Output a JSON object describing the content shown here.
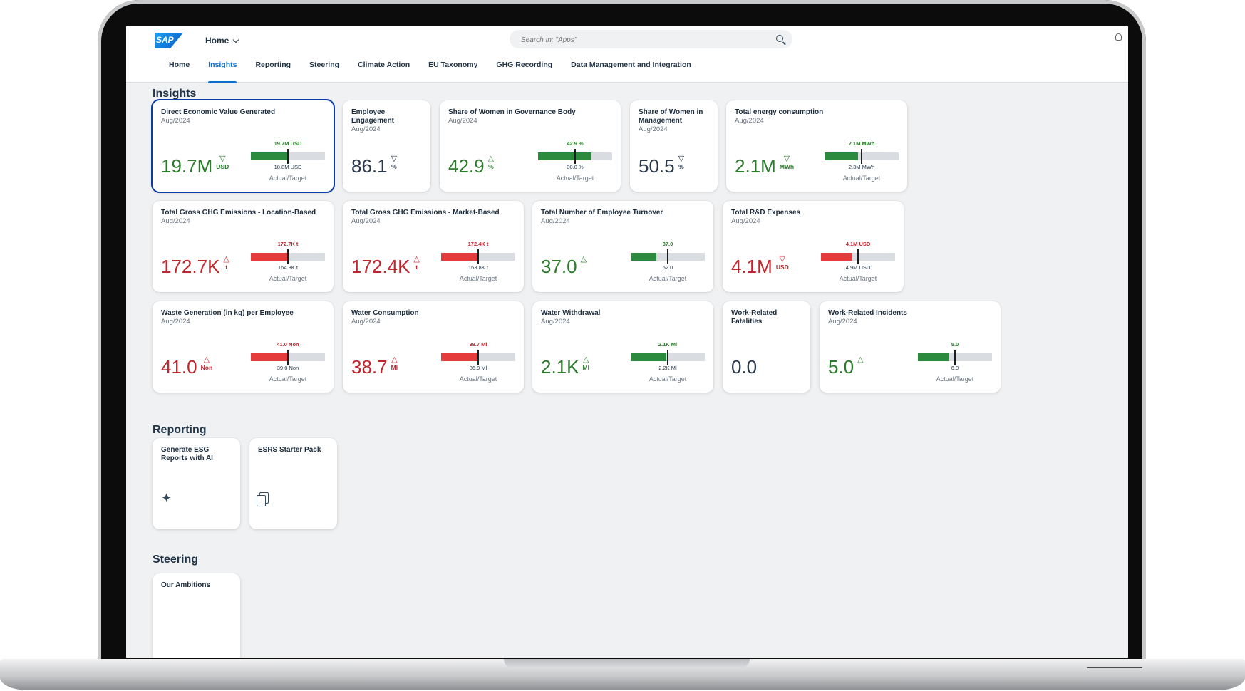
{
  "header": {
    "logo": "SAP",
    "home_label": "Home",
    "search_placeholder": "Search In: \"Apps\""
  },
  "tabs": [
    "Home",
    "Insights",
    "Reporting",
    "Steering",
    "Climate Action",
    "EU Taxonomy",
    "GHG Recording",
    "Data Management and Integration"
  ],
  "active_tab": "Insights",
  "sections": {
    "insights": "Insights",
    "reporting": "Reporting",
    "steering": "Steering"
  },
  "colors": {
    "good": "#2b7c2b",
    "bad": "#c0262d",
    "accent": "#0a6ed1"
  },
  "cards": [
    {
      "title": "Direct Economic Value Generated",
      "date": "Aug/2024",
      "value": "19.7M",
      "unit": "USD",
      "trend": "▽",
      "status": "good",
      "bar_top": "19.7M USD",
      "bar_bottom": "18.8M USD",
      "bar_label": "Actual/Target",
      "actual_fraction": 0.5,
      "target_fraction": 0.5
    },
    {
      "title": "Employee Engagement",
      "date": "Aug/2024",
      "value": "86.1",
      "unit": "%",
      "trend": "▽",
      "status": "neutral"
    },
    {
      "title": "Share of Women in Governance Body",
      "date": "Aug/2024",
      "value": "42.9",
      "unit": "%",
      "trend": "△",
      "status": "good",
      "bar_top": "42.9 %",
      "bar_bottom": "30.0 %",
      "bar_label": "Actual/Target",
      "actual_fraction": 0.72,
      "target_fraction": 0.5
    },
    {
      "title": "Share of Women in Management",
      "date": "Aug/2024",
      "value": "50.5",
      "unit": "%",
      "trend": "▽",
      "status": "neutral"
    },
    {
      "title": "Total energy consumption",
      "date": "Aug/2024",
      "value": "2.1M",
      "unit": "MWh",
      "trend": "▽",
      "status": "good",
      "bar_top": "2.1M MWh",
      "bar_bottom": "2.3M MWh",
      "bar_label": "Actual/Target",
      "actual_fraction": 0.45,
      "target_fraction": 0.5
    },
    {
      "title": "Total Gross GHG Emissions - Location-Based",
      "date": "Aug/2024",
      "value": "172.7K",
      "unit": "t",
      "trend": "△",
      "status": "bad",
      "bar_top": "172.7K t",
      "bar_bottom": "164.3K t",
      "bar_label": "Actual/Target",
      "actual_fraction": 0.5,
      "target_fraction": 0.5
    },
    {
      "title": "Total Gross GHG Emissions - Market-Based",
      "date": "Aug/2024",
      "value": "172.4K",
      "unit": "t",
      "trend": "△",
      "status": "bad",
      "bar_top": "172.4K t",
      "bar_bottom": "163.8K t",
      "bar_label": "Actual/Target",
      "actual_fraction": 0.5,
      "target_fraction": 0.5
    },
    {
      "title": "Total Number of Employee Turnover",
      "date": "Aug/2024",
      "value": "37.0",
      "unit": "",
      "trend": "△",
      "status": "good",
      "bar_top": "37.0",
      "bar_bottom": "52.0",
      "bar_label": "Actual/Target",
      "actual_fraction": 0.35,
      "target_fraction": 0.5
    },
    {
      "title": "Total R&D Expenses",
      "date": "Aug/2024",
      "value": "4.1M",
      "unit": "USD",
      "trend": "▽",
      "status": "bad",
      "bar_top": "4.1M USD",
      "bar_bottom": "4.9M USD",
      "bar_label": "Actual/Target",
      "actual_fraction": 0.42,
      "target_fraction": 0.5
    },
    {
      "title": "Waste Generation (in kg) per Employee",
      "date": "Aug/2024",
      "value": "41.0",
      "unit": "Non",
      "trend": "△",
      "status": "bad",
      "bar_top": "41.0 Non",
      "bar_bottom": "39.0 Non",
      "bar_label": "Actual/Target",
      "actual_fraction": 0.5,
      "target_fraction": 0.5
    },
    {
      "title": "Water Consumption",
      "date": "Aug/2024",
      "value": "38.7",
      "unit": "Ml",
      "trend": "△",
      "status": "bad",
      "bar_top": "38.7 Ml",
      "bar_bottom": "36.9 Ml",
      "bar_label": "Actual/Target",
      "actual_fraction": 0.5,
      "target_fraction": 0.5
    },
    {
      "title": "Water Withdrawal",
      "date": "Aug/2024",
      "value": "2.1K",
      "unit": "Ml",
      "trend": "△",
      "status": "good",
      "bar_top": "2.1K Ml",
      "bar_bottom": "2.2K Ml",
      "bar_label": "Actual/Target",
      "actual_fraction": 0.48,
      "target_fraction": 0.5
    },
    {
      "title": "Work-Related Fatalities",
      "date": "",
      "value": "0.0",
      "unit": "",
      "trend": "",
      "status": "neutral"
    },
    {
      "title": "Work-Related Incidents",
      "date": "Aug/2024",
      "value": "5.0",
      "unit": "",
      "trend": "△",
      "status": "good",
      "bar_top": "5.0",
      "bar_bottom": "6.0",
      "bar_label": "Actual/Target",
      "actual_fraction": 0.42,
      "target_fraction": 0.5
    }
  ],
  "reporting_cards": [
    {
      "title": "Generate ESG Reports with AI",
      "icon": "sparkle-icon"
    },
    {
      "title": "ESRS Starter Pack",
      "icon": "documents-icon"
    }
  ],
  "steering_cards": [
    {
      "title": "Our Ambitions"
    }
  ]
}
